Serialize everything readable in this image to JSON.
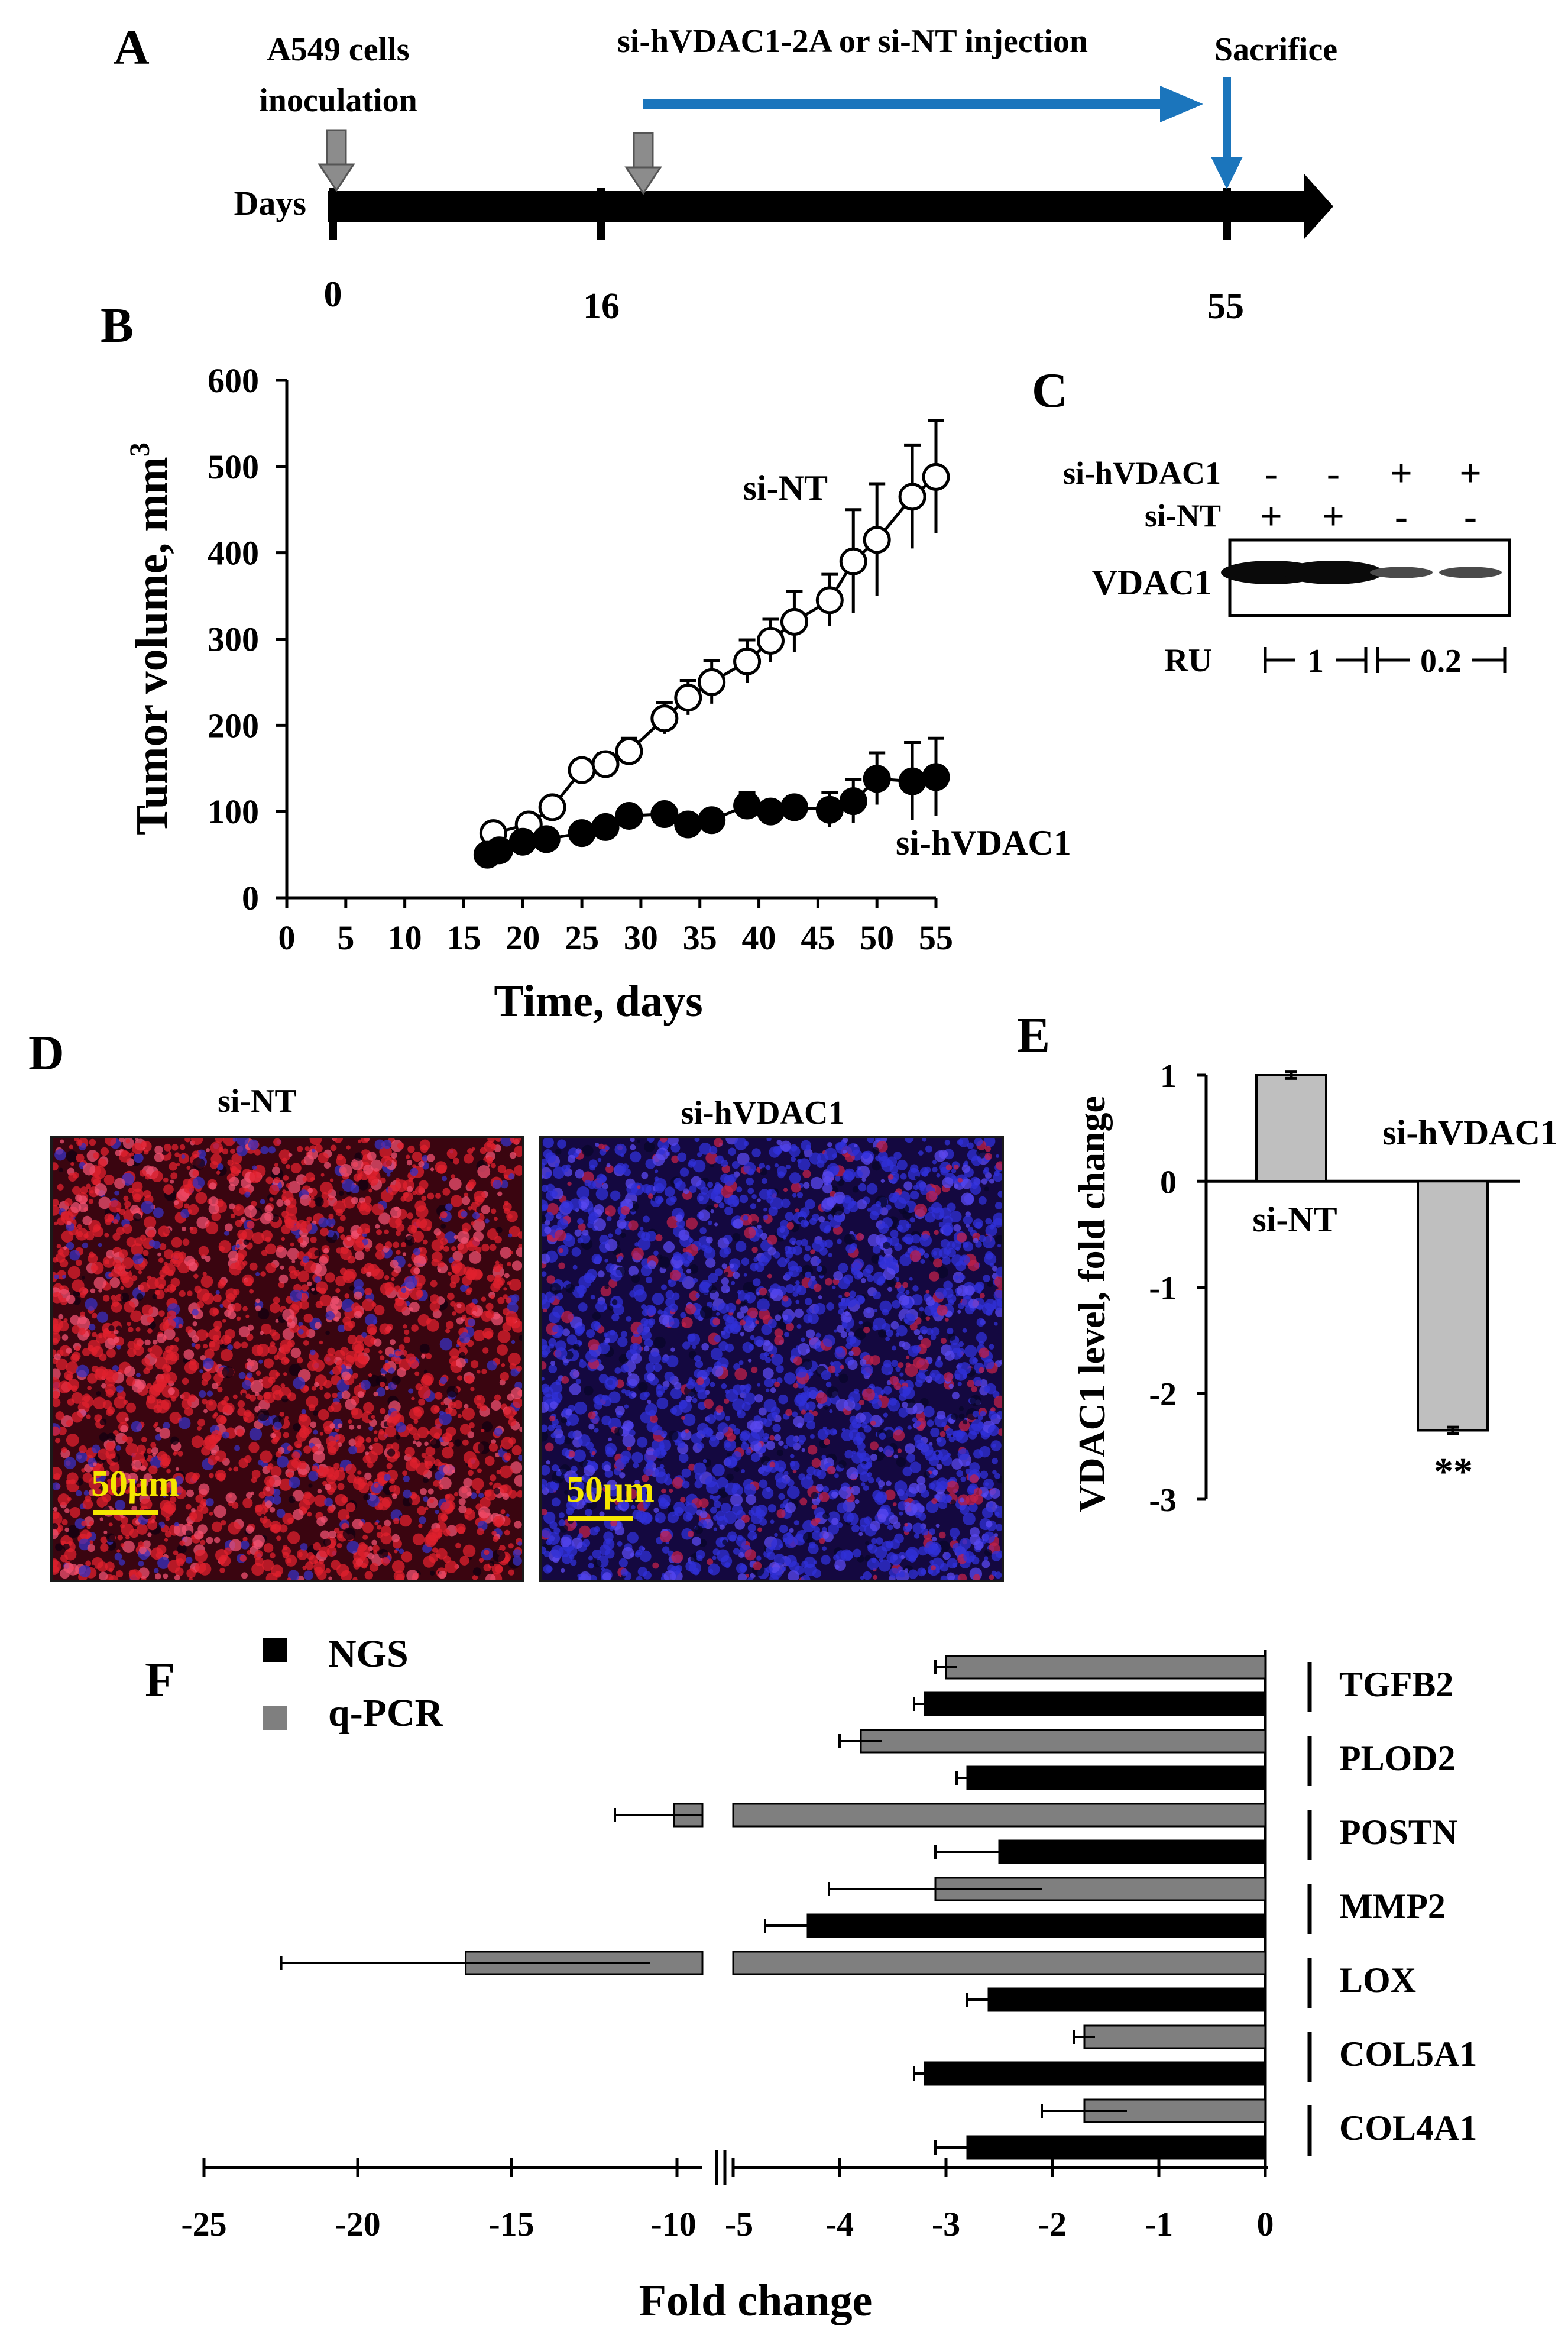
{
  "colors": {
    "black": "#000000",
    "arrow_blue": "#1b75bc",
    "marker_gray": "#8c8c8c",
    "bar_light_gray": "#bfbfbf",
    "qpcr_gray": "#7f7f7f",
    "scale_yellow": "#f5e600"
  },
  "panel_letters": [
    "A",
    "B",
    "C",
    "D",
    "E",
    "F"
  ],
  "panel_a": {
    "labels": {
      "inoculation_line1": "A549 cells",
      "inoculation_line2": "inoculation",
      "injection": "si-hVDAC1-2A or si-NT injection",
      "sacrifice": "Sacrifice",
      "axis": "Days"
    },
    "ticks": [
      {
        "day": 0,
        "label": "0"
      },
      {
        "day": 16,
        "label": "16"
      },
      {
        "day": 55,
        "label": "55"
      }
    ],
    "inoculation_day": 0,
    "injection_day": 16,
    "sacrifice_day": 55
  },
  "panel_c": {
    "row_labels": [
      "si-hVDAC1",
      "si-NT"
    ],
    "lanes": [
      {
        "si_hvdac1": "-",
        "si_nt": "+",
        "intensity": 1.0
      },
      {
        "si_hvdac1": "-",
        "si_nt": "+",
        "intensity": 1.0
      },
      {
        "si_hvdac1": "+",
        "si_nt": "-",
        "intensity": 0.2
      },
      {
        "si_hvdac1": "+",
        "si_nt": "-",
        "intensity": 0.2
      }
    ],
    "band_label": "VDAC1",
    "ru_label": "RU",
    "ru_values": [
      "1",
      "0.2"
    ]
  },
  "panel_d": {
    "images": [
      {
        "title": "si-NT",
        "scale": "50μm",
        "stain": "red-dominant"
      },
      {
        "title": "si-hVDAC1",
        "scale": "50μm",
        "stain": "blue-dominant"
      }
    ]
  },
  "chart_data": [
    {
      "panel": "B",
      "type": "scatter",
      "xlabel": "Time, days",
      "ylabel": "Tumor volume, mm",
      "ylabel_sup": "3",
      "xlim": [
        0,
        55
      ],
      "ylim": [
        0,
        600
      ],
      "xticks": [
        "0",
        "5",
        "10",
        "15",
        "20",
        "25",
        "30",
        "35",
        "40",
        "45",
        "50",
        "55"
      ],
      "yticks": [
        "0",
        "100",
        "200",
        "300",
        "400",
        "500",
        "600"
      ],
      "series": [
        {
          "name": "si-NT",
          "marker": "open-circle",
          "x": [
            17.5,
            20.5,
            22.5,
            25,
            27,
            29,
            32,
            34,
            36,
            39,
            41,
            43,
            46,
            48,
            50,
            53,
            55
          ],
          "y": [
            75,
            85,
            105,
            148,
            155,
            170,
            208,
            232,
            250,
            274,
            298,
            320,
            345,
            390,
            415,
            465,
            488
          ],
          "err": [
            5,
            8,
            10,
            12,
            12,
            15,
            18,
            20,
            25,
            25,
            25,
            35,
            30,
            60,
            65,
            60,
            65
          ]
        },
        {
          "name": "si-hVDAC1",
          "marker": "filled-circle",
          "x": [
            17,
            18,
            20,
            22,
            25,
            27,
            29,
            32,
            34,
            36,
            39,
            41,
            43,
            46,
            48,
            50,
            53,
            55
          ],
          "y": [
            50,
            55,
            65,
            68,
            75,
            82,
            95,
            97,
            85,
            90,
            107,
            100,
            105,
            102,
            112,
            138,
            135,
            140
          ],
          "err": [
            5,
            5,
            6,
            6,
            8,
            8,
            8,
            10,
            10,
            10,
            15,
            12,
            12,
            20,
            25,
            30,
            45,
            45
          ]
        }
      ]
    },
    {
      "panel": "E",
      "type": "bar",
      "ylabel": "VDAC1 level, fold change",
      "ylim": [
        -3,
        1
      ],
      "yticks": [
        "1",
        "0",
        "-1",
        "-2",
        "-3"
      ],
      "categories": [
        "si-NT",
        "si-hVDAC1"
      ],
      "values": [
        1.0,
        -2.35
      ],
      "errors": [
        0.03,
        0.03
      ],
      "annotation": "**"
    },
    {
      "panel": "F",
      "type": "bar",
      "orientation": "horizontal",
      "xlabel": "Fold change",
      "xticks": [
        "-25",
        "-20",
        "-15",
        "-10",
        "-5",
        "-4",
        "-3",
        "-2",
        "-1",
        "0"
      ],
      "axis_break": [
        -10,
        -5
      ],
      "categories": [
        "TGFB2",
        "PLOD2",
        "POSTN",
        "MMP2",
        "LOX",
        "COL5A1",
        "COL4A1"
      ],
      "series": [
        {
          "name": "NGS",
          "values": [
            -3.2,
            -2.8,
            -2.5,
            -4.3,
            -2.6,
            -3.2,
            -2.8
          ],
          "errors": [
            0.1,
            0.1,
            0.6,
            0.4,
            0.2,
            0.1,
            0.3
          ]
        },
        {
          "name": "q-PCR",
          "values": [
            -3.0,
            -3.8,
            -10.0,
            -3.1,
            -17.7,
            -1.7,
            -1.7
          ],
          "errors": [
            0.1,
            0.2,
            2.0,
            1.0,
            6.0,
            0.1,
            0.4
          ]
        }
      ]
    }
  ]
}
